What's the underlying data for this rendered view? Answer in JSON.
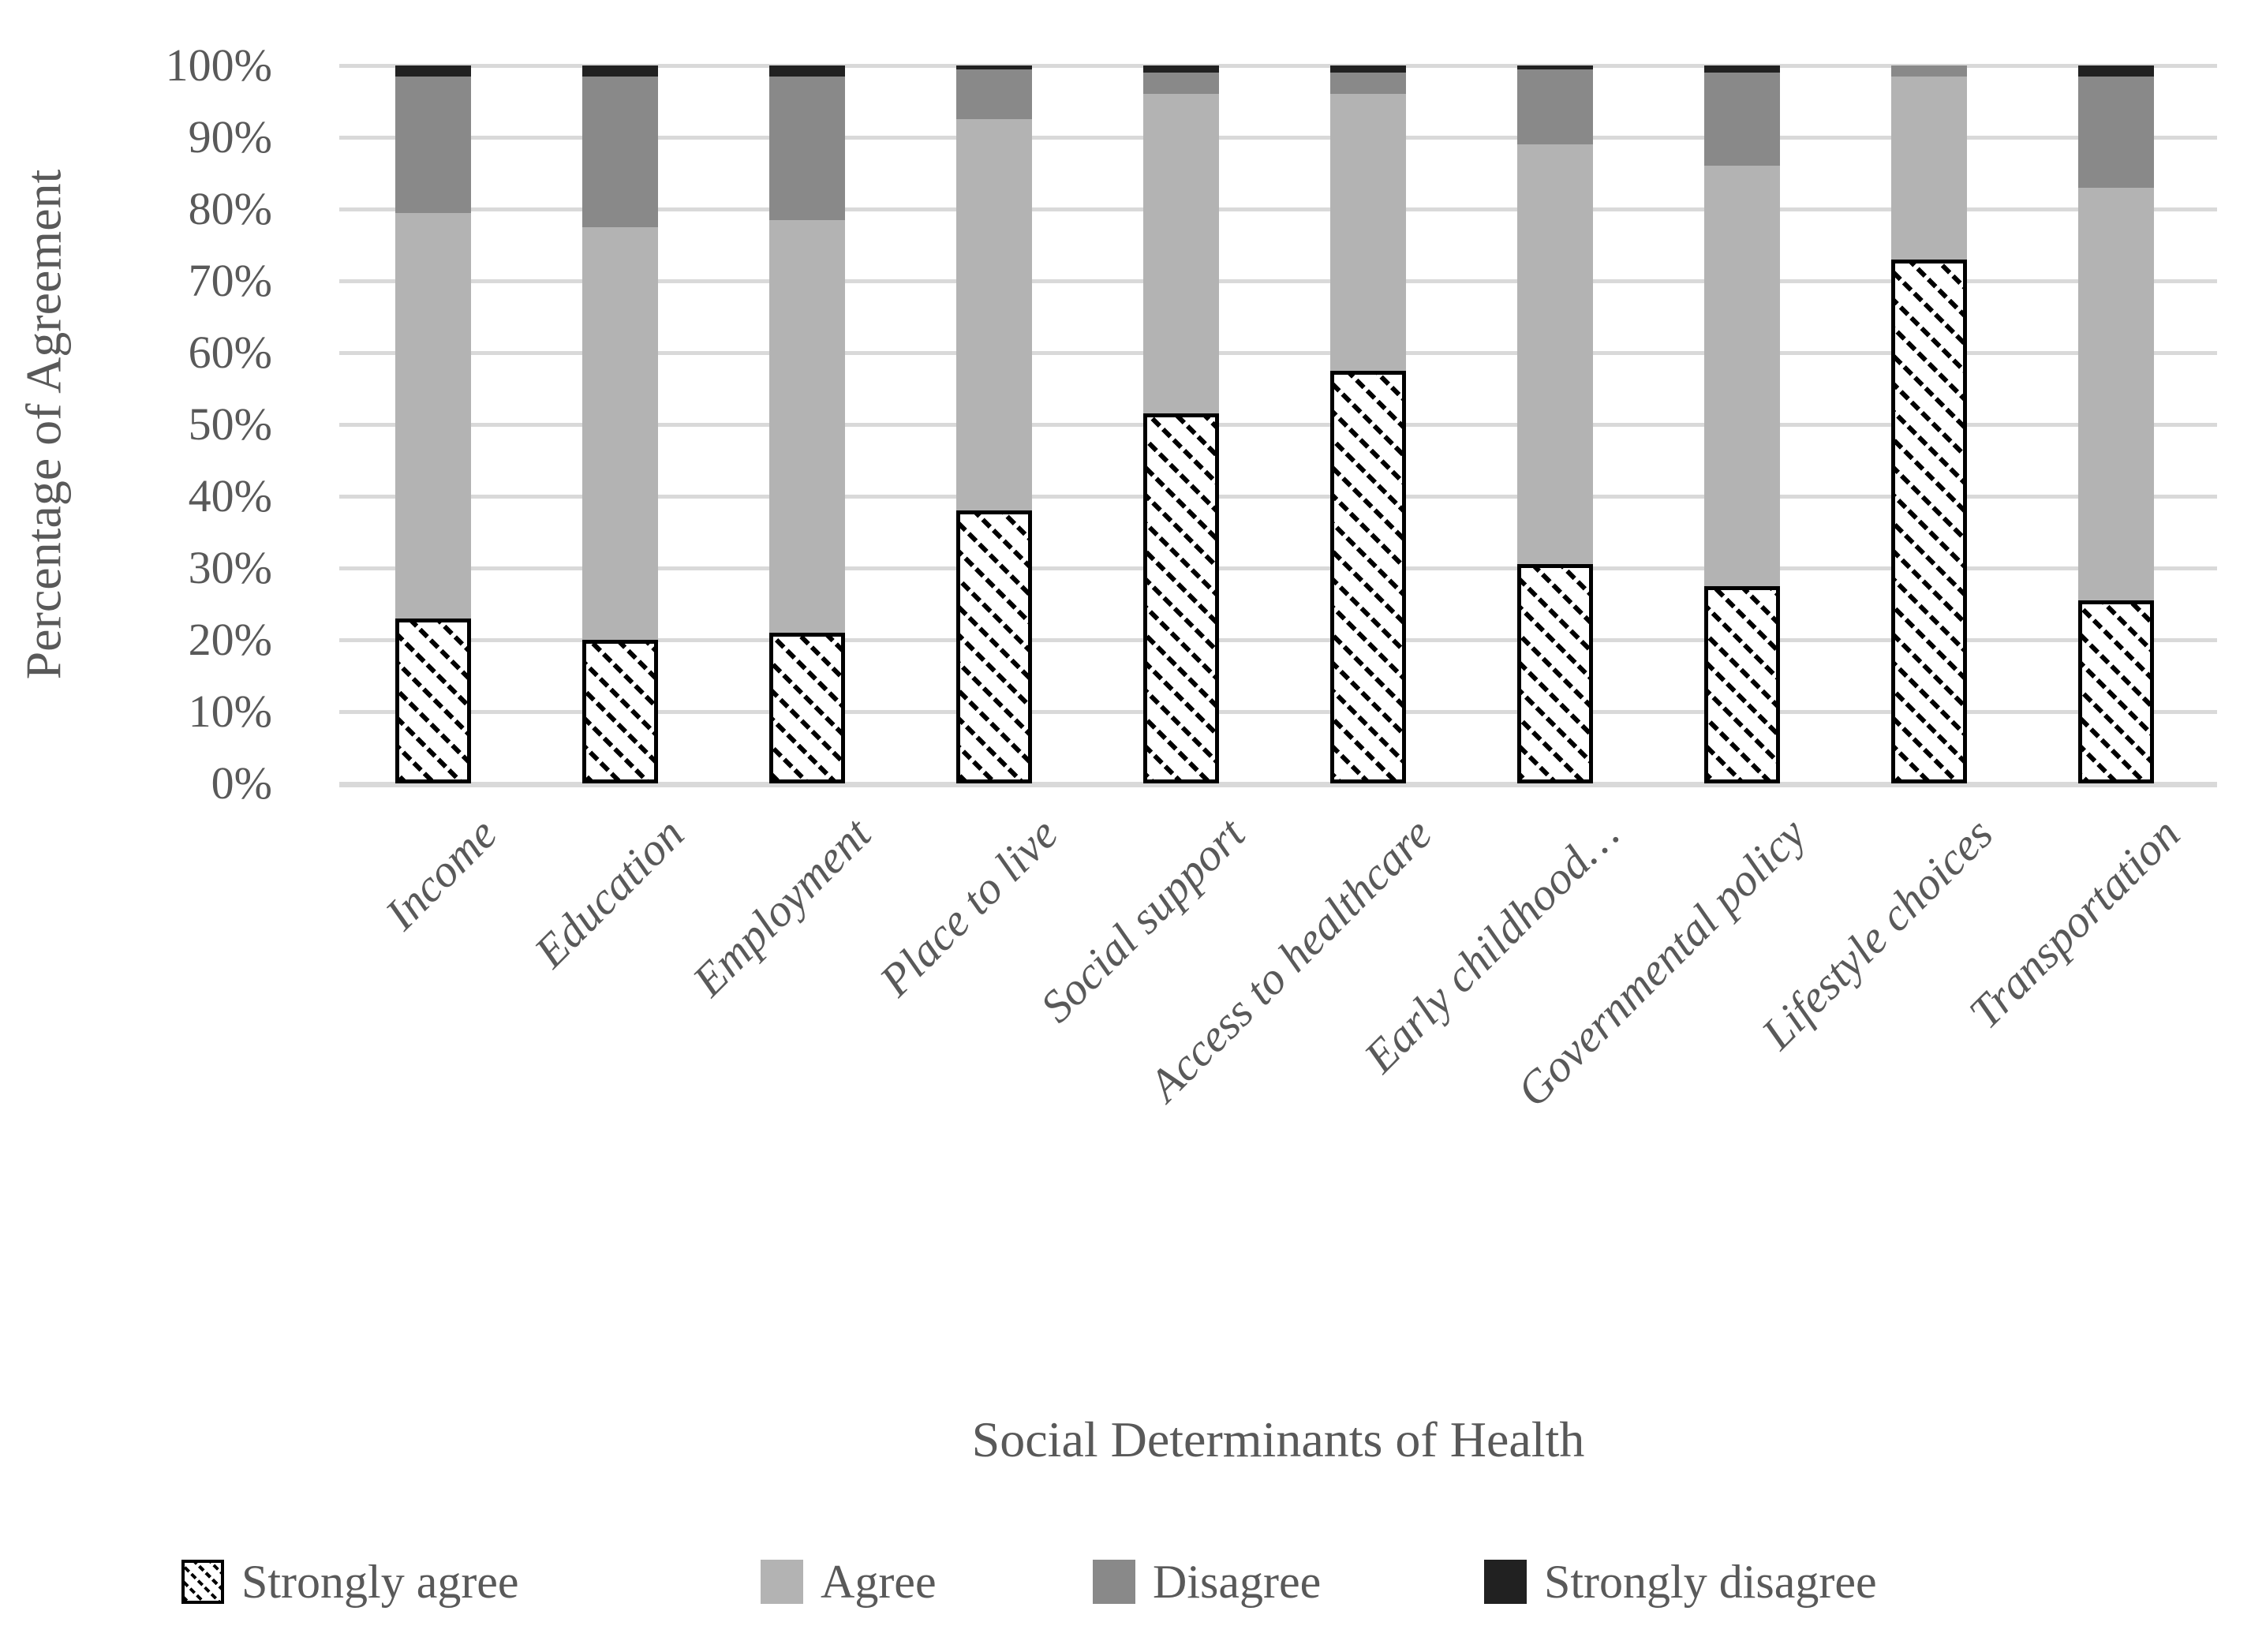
{
  "colors": {
    "strongly_agree_fill": "#ffffff",
    "strongly_agree_hatch": "#000000",
    "agree": "#b3b3b3",
    "disagree": "#898989",
    "strongly_disagree": "#212121",
    "gridline": "#d9d9d9",
    "text": "#595959"
  },
  "chart_data": {
    "type": "bar",
    "stacked": true,
    "stack_total": 100,
    "title": "",
    "xlabel": "Social Determinants of Health",
    "ylabel": "Percentage of Agreement",
    "ylim": [
      0,
      100
    ],
    "y_ticks": [
      "100%",
      "90%",
      "80%",
      "70%",
      "60%",
      "50%",
      "40%",
      "30%",
      "20%",
      "10%",
      "0%"
    ],
    "grid": "horizontal",
    "legend_position": "bottom",
    "categories": [
      "Income",
      "Education",
      "Employment",
      "Place to live",
      "Social support",
      "Access to healthcare",
      "Early childhood…",
      "Governmental policy",
      "Lifestyle choices",
      "Transportation"
    ],
    "series": [
      {
        "name": "Strongly agree",
        "style": "black-diagonal-hatch-on-white",
        "values": [
          23,
          20,
          21,
          38,
          51.5,
          57.5,
          30.5,
          27.5,
          73,
          25.5
        ]
      },
      {
        "name": "Agree",
        "style": "light-gray",
        "values": [
          56.5,
          57.5,
          57.5,
          54.5,
          44.5,
          38.5,
          58.5,
          58.5,
          25.5,
          57.5
        ]
      },
      {
        "name": "Disagree",
        "style": "dark-gray",
        "values": [
          19,
          21,
          20,
          7,
          3,
          3,
          10.5,
          13,
          1.5,
          15.5
        ]
      },
      {
        "name": "Strongly disagree",
        "style": "black",
        "values": [
          1.5,
          1.5,
          1.5,
          0.5,
          1,
          1,
          0.5,
          1,
          0,
          1.5
        ]
      }
    ]
  }
}
